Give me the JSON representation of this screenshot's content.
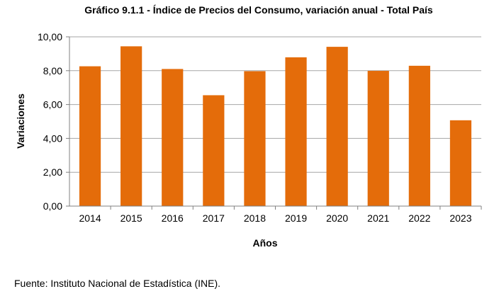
{
  "chart_data": {
    "type": "bar",
    "title": "Gráfico 9.1.1 - Índice de Precios del Consumo, variación anual - Total País",
    "xlabel": "Años",
    "ylabel": "Variaciones",
    "categories": [
      "2014",
      "2015",
      "2016",
      "2017",
      "2018",
      "2019",
      "2020",
      "2021",
      "2022",
      "2023"
    ],
    "values": [
      8.26,
      9.44,
      8.1,
      6.55,
      7.97,
      8.79,
      9.41,
      7.99,
      8.29,
      5.07
    ],
    "ylim": [
      0,
      10
    ],
    "yticks": [
      0,
      2,
      4,
      6,
      8,
      10
    ],
    "ytick_labels": [
      "0,00",
      "2,00",
      "4,00",
      "6,00",
      "8,00",
      "10,00"
    ],
    "grid": true,
    "legend": "none",
    "bar_color": "#E46C0A"
  },
  "source": "Fuente: Instituto Nacional de Estadística (INE)."
}
